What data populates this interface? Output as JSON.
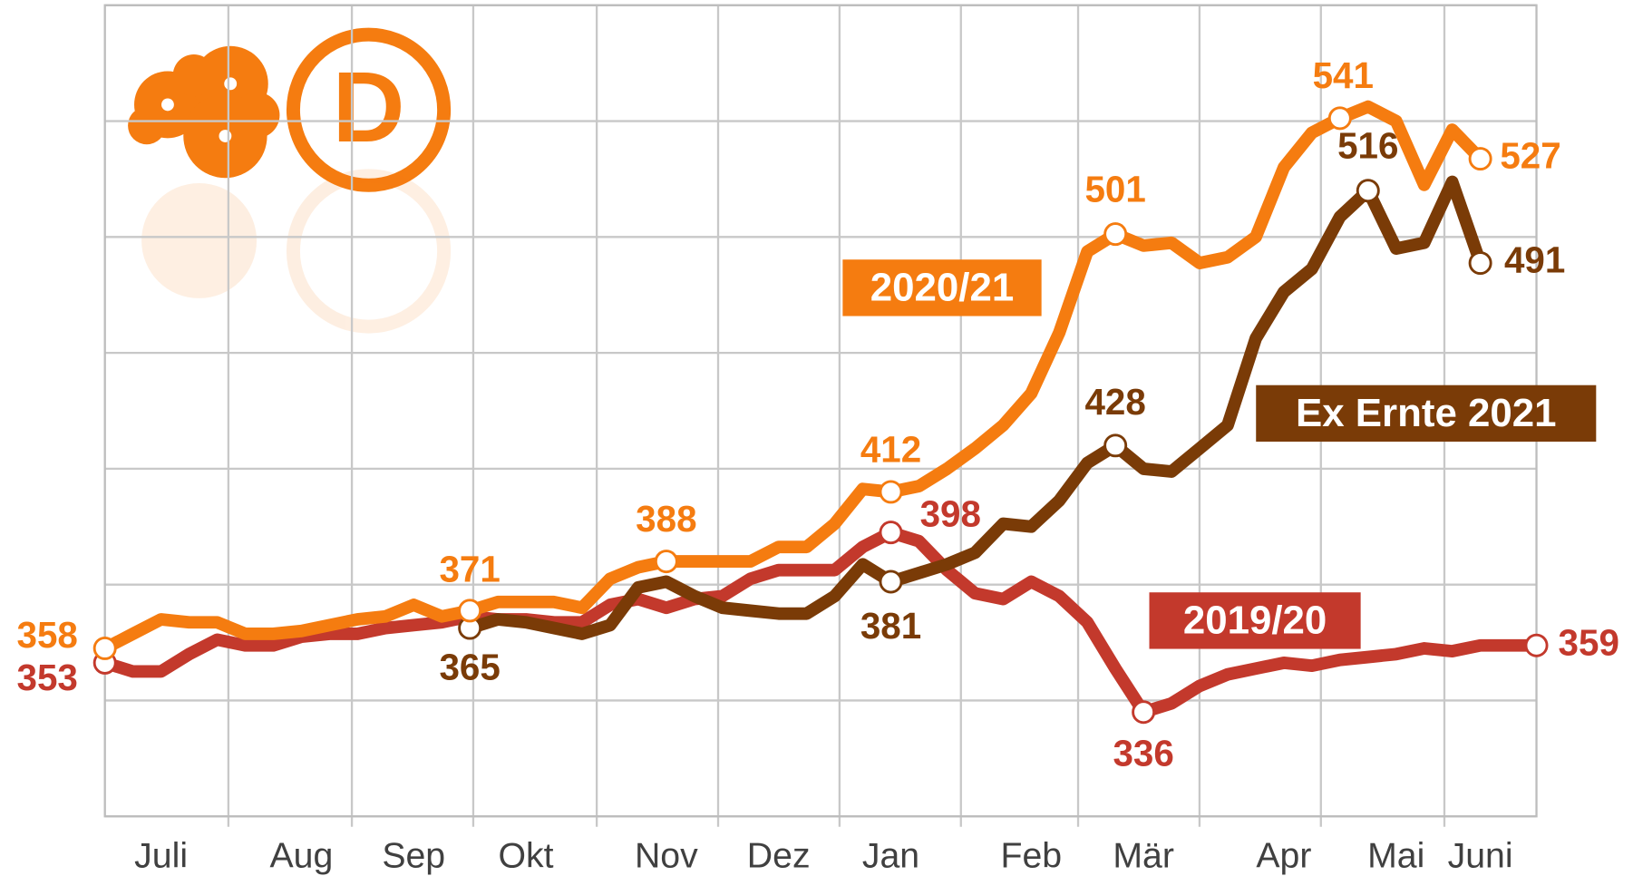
{
  "logo": {
    "text": "D"
  },
  "chart_data": {
    "type": "line",
    "categories": [
      null,
      null,
      "Juli",
      null,
      null,
      null,
      null,
      "Aug",
      null,
      null,
      null,
      "Sep",
      null,
      null,
      null,
      "Okt",
      null,
      null,
      null,
      null,
      "Nov",
      null,
      null,
      null,
      "Dez",
      null,
      null,
      null,
      "Jan",
      null,
      null,
      null,
      null,
      "Feb",
      null,
      null,
      null,
      "Mär",
      null,
      null,
      null,
      null,
      "Apr",
      null,
      null,
      null,
      "Mai",
      null,
      null,
      "Juni",
      null,
      null
    ],
    "ylim": [
      300,
      580
    ],
    "yticks": [
      300,
      340,
      380,
      420,
      460,
      500,
      540,
      580
    ],
    "grid": true,
    "series": [
      {
        "name": "2019/20",
        "color": "#c3392c",
        "values": [
          353,
          350,
          350,
          356,
          361,
          359,
          359,
          362,
          363,
          363,
          365,
          366,
          367,
          369,
          368,
          368,
          367,
          367,
          373,
          375,
          372,
          375,
          376,
          382,
          385,
          385,
          385,
          393,
          398,
          395,
          385,
          377,
          375,
          381,
          376,
          367,
          351,
          336,
          339,
          345,
          349,
          351,
          353,
          352,
          354,
          355,
          356,
          358,
          357,
          359,
          359,
          359
        ]
      },
      {
        "name": "Ex Ernte 2021",
        "color": "#7a3b07",
        "values": [
          null,
          null,
          null,
          null,
          null,
          null,
          null,
          null,
          null,
          null,
          null,
          null,
          null,
          365,
          368,
          367,
          365,
          363,
          366,
          379,
          381,
          376,
          372,
          371,
          370,
          370,
          376,
          387,
          381,
          384,
          387,
          391,
          401,
          400,
          409,
          422,
          428,
          420,
          419,
          427,
          435,
          465,
          481,
          489,
          507,
          516,
          496,
          498,
          519,
          491,
          null,
          null
        ]
      },
      {
        "name": "2020/21",
        "color": "#f57c10",
        "values": [
          358,
          363,
          368,
          367,
          367,
          363,
          363,
          364,
          366,
          368,
          369,
          373,
          369,
          371,
          374,
          374,
          374,
          372,
          382,
          386,
          388,
          388,
          388,
          388,
          393,
          393,
          401,
          413,
          412,
          414,
          420,
          427,
          435,
          446,
          467,
          495,
          501,
          497,
          498,
          491,
          493,
          500,
          524,
          536,
          541,
          545,
          540,
          518,
          537,
          527,
          null,
          null
        ]
      }
    ]
  }
}
